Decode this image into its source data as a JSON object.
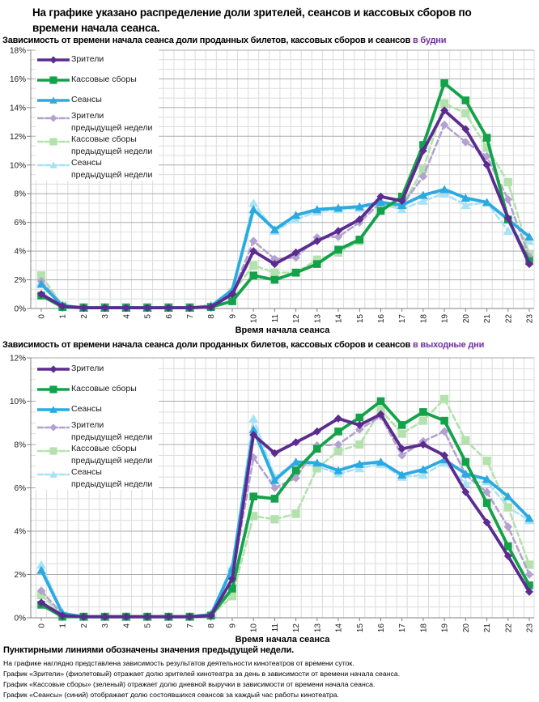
{
  "title": "На графике указано распределение доли зрителей, сеансов и кассовых сборов по времени начала сеанса.",
  "colors": {
    "viewers": "#5B2B8F",
    "box_office": "#13A24A",
    "sessions": "#2BAAE2",
    "viewers_prev": "#B3A2CF",
    "box_office_prev": "#B3E2AC",
    "sessions_prev": "#A8E2F4",
    "accent": "#7030A0",
    "grid_major": "#ABABAB",
    "grid_minor": "#DCDCDC",
    "axis": "#808080"
  },
  "charts": [
    {
      "subtitle": "Зависимость от времени начала сеанса доли проданных билетов, кассовых сборов и сеансов",
      "subtitle_accent": "в будни"
    },
    {
      "subtitle": "Зависимость от времени начала сеанса доли проданных билетов, кассовых сборов и сеансов",
      "subtitle_accent": "в выходные дни"
    }
  ],
  "chart_data": [
    {
      "type": "line",
      "title": "Зависимость от времени начала сеанса доли проданных билетов, кассовых сборов и сеансов в будни",
      "x": [
        0,
        1,
        2,
        3,
        4,
        5,
        6,
        7,
        8,
        9,
        10,
        11,
        12,
        13,
        14,
        15,
        16,
        17,
        18,
        19,
        20,
        21,
        22,
        23
      ],
      "xlabel": "Время начала сеанса",
      "ylabel": "",
      "ylim": [
        0,
        18
      ],
      "ytick_step": 2,
      "grid": true,
      "legend_position": "upper-left",
      "series": [
        {
          "name": "Зрители",
          "legend_lines": [
            "Зрители"
          ],
          "color": "#5B2B8F",
          "line": "solid",
          "marker": "diamond",
          "values": [
            1.0,
            0.15,
            0.05,
            0.05,
            0.05,
            0.05,
            0.05,
            0.05,
            0.1,
            1.0,
            4.0,
            3.1,
            3.9,
            4.7,
            5.4,
            6.2,
            7.8,
            7.5,
            11.0,
            13.8,
            12.5,
            10.0,
            6.3,
            3.1
          ]
        },
        {
          "name": "Кассовые сборы",
          "legend_lines": [
            "Кассовые сборы"
          ],
          "color": "#13A24A",
          "line": "solid",
          "marker": "square",
          "values": [
            0.9,
            0.1,
            0.05,
            0.05,
            0.05,
            0.05,
            0.05,
            0.05,
            0.1,
            0.5,
            2.3,
            2.0,
            2.5,
            3.1,
            4.1,
            4.8,
            6.8,
            7.8,
            11.4,
            15.7,
            14.5,
            11.9,
            6.2,
            3.3
          ]
        },
        {
          "name": "Сеансы",
          "legend_lines": [
            "Сеансы"
          ],
          "color": "#2BAAE2",
          "line": "solid",
          "marker": "triangle",
          "values": [
            1.7,
            0.2,
            0.05,
            0.05,
            0.05,
            0.05,
            0.05,
            0.05,
            0.15,
            1.3,
            6.9,
            5.5,
            6.5,
            6.9,
            7.0,
            7.1,
            7.4,
            7.2,
            7.9,
            8.3,
            7.7,
            7.4,
            6.2,
            5.0
          ]
        },
        {
          "name": "Зрители предыдущей недели",
          "legend_lines": [
            "Зрители",
            "предыдущей недели"
          ],
          "color": "#B3A2CF",
          "line": "dashed",
          "marker": "diamond",
          "values": [
            1.9,
            0.2,
            0.05,
            0.05,
            0.05,
            0.05,
            0.05,
            0.05,
            0.1,
            1.05,
            4.7,
            3.45,
            3.55,
            4.95,
            5.0,
            6.0,
            7.4,
            7.2,
            9.2,
            12.8,
            11.6,
            10.6,
            7.6,
            3.6
          ]
        },
        {
          "name": "Кассовые сборы предыдущей недели",
          "legend_lines": [
            "Кассовые сборы",
            "предыдущей недели"
          ],
          "color": "#B3E2AC",
          "line": "dashed",
          "marker": "square",
          "values": [
            2.3,
            0.2,
            0.1,
            0.1,
            0.1,
            0.1,
            0.1,
            0.1,
            0.1,
            1.1,
            3.0,
            2.5,
            2.5,
            3.4,
            3.9,
            4.7,
            7.0,
            7.2,
            9.7,
            14.3,
            13.6,
            11.2,
            8.8,
            3.8
          ]
        },
        {
          "name": "Сеансы предыдущей недели",
          "legend_lines": [
            "Сеансы",
            "предыдущей недели"
          ],
          "color": "#A8E2F4",
          "line": "dashed",
          "marker": "triangle",
          "values": [
            1.85,
            0.25,
            0.05,
            0.05,
            0.05,
            0.05,
            0.05,
            0.05,
            0.25,
            1.3,
            7.35,
            5.4,
            6.2,
            6.75,
            6.9,
            7.0,
            7.3,
            6.9,
            7.5,
            8.0,
            7.2,
            7.4,
            5.4,
            4.7
          ]
        }
      ]
    },
    {
      "type": "line",
      "title": "Зависимость от времени начала сеанса доли проданных билетов, кассовых сборов и сеансов в выходные дни",
      "x": [
        0,
        1,
        2,
        3,
        4,
        5,
        6,
        7,
        8,
        9,
        10,
        11,
        12,
        13,
        14,
        15,
        16,
        17,
        18,
        19,
        20,
        21,
        22,
        23
      ],
      "xlabel": "Время начала сеанса",
      "ylabel": "",
      "ylim": [
        0,
        12
      ],
      "ytick_step": 2,
      "grid": true,
      "legend_position": "upper-left",
      "series": [
        {
          "name": "Зрители",
          "legend_lines": [
            "Зрители"
          ],
          "color": "#5B2B8F",
          "line": "solid",
          "marker": "diamond",
          "values": [
            0.7,
            0.1,
            0.05,
            0.05,
            0.05,
            0.05,
            0.05,
            0.05,
            0.1,
            1.8,
            8.45,
            7.6,
            8.1,
            8.6,
            9.2,
            8.9,
            9.4,
            7.8,
            8.0,
            7.5,
            5.8,
            4.4,
            2.85,
            1.2
          ]
        },
        {
          "name": "Кассовые сборы",
          "legend_lines": [
            "Кассовые сборы"
          ],
          "color": "#13A24A",
          "line": "solid",
          "marker": "square",
          "values": [
            0.6,
            0.05,
            0.05,
            0.05,
            0.05,
            0.05,
            0.05,
            0.05,
            0.1,
            1.35,
            5.6,
            5.5,
            6.8,
            7.8,
            8.6,
            9.25,
            10.0,
            8.9,
            9.5,
            9.1,
            7.2,
            5.3,
            3.3,
            1.5
          ]
        },
        {
          "name": "Сеансы",
          "legend_lines": [
            "Сеансы"
          ],
          "color": "#2BAAE2",
          "line": "solid",
          "marker": "triangle",
          "values": [
            2.2,
            0.2,
            0.05,
            0.05,
            0.05,
            0.05,
            0.05,
            0.05,
            0.15,
            2.3,
            8.7,
            6.35,
            7.2,
            7.15,
            6.8,
            7.1,
            7.2,
            6.6,
            6.85,
            7.3,
            6.65,
            6.4,
            5.6,
            4.6
          ]
        },
        {
          "name": "Зрители предыдущей недели",
          "legend_lines": [
            "Зрители",
            "предыдущей недели"
          ],
          "color": "#B3A2CF",
          "line": "dashed",
          "marker": "diamond",
          "values": [
            1.25,
            0.15,
            0.05,
            0.05,
            0.05,
            0.05,
            0.05,
            0.05,
            0.1,
            1.85,
            7.4,
            6.0,
            6.45,
            7.95,
            8.0,
            8.7,
            9.3,
            7.5,
            8.15,
            8.6,
            6.6,
            5.8,
            4.2,
            2.0
          ]
        },
        {
          "name": "Кассовые сборы предыдущей недели",
          "legend_lines": [
            "Кассовые сборы",
            "предыдущей недели"
          ],
          "color": "#B3E2AC",
          "line": "dashed",
          "marker": "square",
          "values": [
            1.05,
            0.1,
            0.05,
            0.05,
            0.05,
            0.05,
            0.05,
            0.05,
            0.1,
            1.0,
            4.7,
            4.55,
            4.8,
            6.9,
            7.7,
            8.0,
            9.6,
            8.5,
            9.1,
            10.1,
            8.2,
            7.25,
            5.1,
            2.45
          ]
        },
        {
          "name": "Сеансы предыдущей недели",
          "legend_lines": [
            "Сеансы",
            "предыдущей недели"
          ],
          "color": "#A8E2F4",
          "line": "dashed",
          "marker": "triangle",
          "values": [
            2.45,
            0.25,
            0.05,
            0.05,
            0.05,
            0.05,
            0.05,
            0.05,
            0.2,
            2.4,
            9.2,
            6.5,
            7.15,
            7.0,
            6.65,
            6.9,
            7.1,
            6.5,
            6.6,
            7.15,
            6.2,
            6.3,
            5.1,
            4.5
          ]
        }
      ]
    }
  ],
  "footer": {
    "bold_note": "Пунктирными линиями обозначены значения предыдущей недели.",
    "lines": [
      "На графике наглядно представлена зависимость результатов деятельности кинотеатров от времени суток.",
      "График «Зрители» (фиолетовый) отражает долю зрителей кинотеатра за день в зависимости от времени начала сеанса.",
      "График «Кассовые сборы» (зеленый) отражает долю дневной выручки в зависимости от времени начала сеанса.",
      "График «Сеансы» (синий) отображает долю состоявшихся сеансов за каждый час работы кинотеатра."
    ]
  }
}
